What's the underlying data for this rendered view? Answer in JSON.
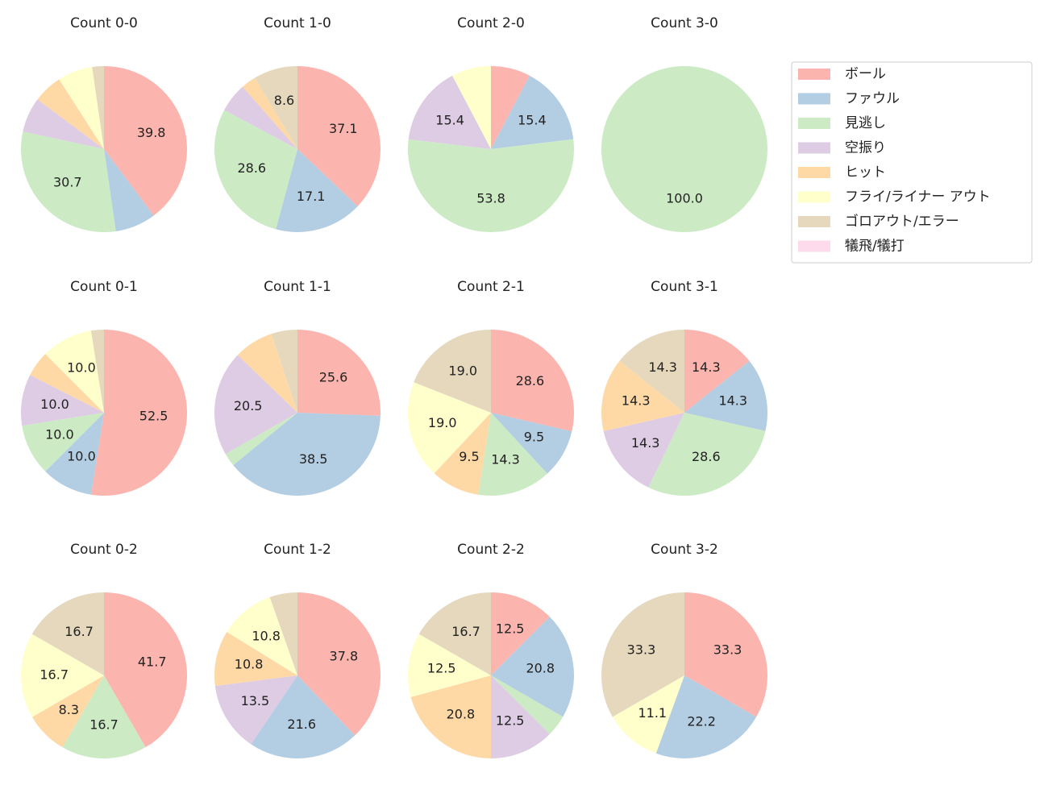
{
  "chart_data": [
    {
      "type": "pie",
      "title": "Count 0-0",
      "categories": [
        "ボール",
        "ファウル",
        "見逃し",
        "空振り",
        "ヒット",
        "フライ/ライナー アウト",
        "ゴロアウト/エラー",
        "犠飛/犠打"
      ],
      "colors": [
        "#fbb4ae",
        "#b3cde3",
        "#ccebc5",
        "#decbe4",
        "#fed9a6",
        "#ffffcc",
        "#e5d8bd",
        "#fddaec"
      ],
      "values": [
        39.8,
        7.95,
        30.7,
        6.8,
        5.7,
        6.8,
        2.3,
        0
      ],
      "value_labels": [
        "39.8",
        null,
        "30.7",
        null,
        null,
        null,
        null,
        null
      ],
      "legend": "upper right"
    },
    {
      "type": "pie",
      "title": "Count 1-0",
      "categories": [
        "ボール",
        "ファウル",
        "見逃し",
        "空振り",
        "ヒット",
        "フライ/ライナー アウト",
        "ゴロアウト/エラー",
        "犠飛/犠打"
      ],
      "colors": [
        "#fbb4ae",
        "#b3cde3",
        "#ccebc5",
        "#decbe4",
        "#fed9a6",
        "#ffffcc",
        "#e5d8bd",
        "#fddaec"
      ],
      "values": [
        37.1,
        17.1,
        28.6,
        5.7,
        2.9,
        0,
        8.6,
        0
      ],
      "value_labels": [
        "37.1",
        "17.1",
        "28.6",
        null,
        null,
        null,
        "8.6",
        null
      ]
    },
    {
      "type": "pie",
      "title": "Count 2-0",
      "categories": [
        "ボール",
        "ファウル",
        "見逃し",
        "空振り",
        "ヒット",
        "フライ/ライナー アウト",
        "ゴロアウト/エラー",
        "犠飛/犠打"
      ],
      "colors": [
        "#fbb4ae",
        "#b3cde3",
        "#ccebc5",
        "#decbe4",
        "#fed9a6",
        "#ffffcc",
        "#e5d8bd",
        "#fddaec"
      ],
      "values": [
        7.7,
        15.4,
        53.8,
        15.4,
        0,
        7.7,
        0,
        0
      ],
      "value_labels": [
        null,
        "15.4",
        "53.8",
        "15.4",
        null,
        null,
        null,
        null
      ]
    },
    {
      "type": "pie",
      "title": "Count 3-0",
      "categories": [
        "ボール",
        "ファウル",
        "見逃し",
        "空振り",
        "ヒット",
        "フライ/ライナー アウト",
        "ゴロアウト/エラー",
        "犠飛/犠打"
      ],
      "colors": [
        "#fbb4ae",
        "#b3cde3",
        "#ccebc5",
        "#decbe4",
        "#fed9a6",
        "#ffffcc",
        "#e5d8bd",
        "#fddaec"
      ],
      "values": [
        0,
        0,
        100,
        0,
        0,
        0,
        0,
        0
      ],
      "value_labels": [
        null,
        null,
        "100.0",
        null,
        null,
        null,
        null,
        null
      ]
    },
    {
      "type": "pie",
      "title": "Count 0-1",
      "categories": [
        "ボール",
        "ファウル",
        "見逃し",
        "空振り",
        "ヒット",
        "フライ/ライナー アウト",
        "ゴロアウト/エラー",
        "犠飛/犠打"
      ],
      "colors": [
        "#fbb4ae",
        "#b3cde3",
        "#ccebc5",
        "#decbe4",
        "#fed9a6",
        "#ffffcc",
        "#e5d8bd",
        "#fddaec"
      ],
      "values": [
        52.5,
        10,
        10,
        10,
        5,
        10,
        2.5,
        0
      ],
      "value_labels": [
        "52.5",
        "10.0",
        "10.0",
        "10.0",
        null,
        "10.0",
        null,
        null
      ]
    },
    {
      "type": "pie",
      "title": "Count 1-1",
      "categories": [
        "ボール",
        "ファウル",
        "見逃し",
        "空振り",
        "ヒット",
        "フライ/ライナー アウト",
        "ゴロアウト/エラー",
        "犠飛/犠打"
      ],
      "colors": [
        "#fbb4ae",
        "#b3cde3",
        "#ccebc5",
        "#decbe4",
        "#fed9a6",
        "#ffffcc",
        "#e5d8bd",
        "#fddaec"
      ],
      "values": [
        25.6,
        38.5,
        2.6,
        20.5,
        7.7,
        0,
        5.1,
        0
      ],
      "value_labels": [
        "25.6",
        "38.5",
        null,
        "20.5",
        null,
        null,
        null,
        null
      ]
    },
    {
      "type": "pie",
      "title": "Count 2-1",
      "categories": [
        "ボール",
        "ファウル",
        "見逃し",
        "空振り",
        "ヒット",
        "フライ/ライナー アウト",
        "ゴロアウト/エラー",
        "犠飛/犠打"
      ],
      "colors": [
        "#fbb4ae",
        "#b3cde3",
        "#ccebc5",
        "#decbe4",
        "#fed9a6",
        "#ffffcc",
        "#e5d8bd",
        "#fddaec"
      ],
      "values": [
        28.6,
        9.5,
        14.3,
        0,
        9.5,
        19,
        19,
        0
      ],
      "value_labels": [
        "28.6",
        "9.5",
        "14.3",
        null,
        "9.5",
        "19.0",
        "19.0",
        null
      ]
    },
    {
      "type": "pie",
      "title": "Count 3-1",
      "categories": [
        "ボール",
        "ファウル",
        "見逃し",
        "空振り",
        "ヒット",
        "フライ/ライナー アウト",
        "ゴロアウト/エラー",
        "犠飛/犠打"
      ],
      "colors": [
        "#fbb4ae",
        "#b3cde3",
        "#ccebc5",
        "#decbe4",
        "#fed9a6",
        "#ffffcc",
        "#e5d8bd",
        "#fddaec"
      ],
      "values": [
        14.3,
        14.3,
        28.6,
        14.3,
        14.3,
        0,
        14.3,
        0
      ],
      "value_labels": [
        "14.3",
        "14.3",
        "28.6",
        "14.3",
        "14.3",
        null,
        "14.3",
        null
      ]
    },
    {
      "type": "pie",
      "title": "Count 0-2",
      "categories": [
        "ボール",
        "ファウル",
        "見逃し",
        "空振り",
        "ヒット",
        "フライ/ライナー アウト",
        "ゴロアウト/エラー",
        "犠飛/犠打"
      ],
      "colors": [
        "#fbb4ae",
        "#b3cde3",
        "#ccebc5",
        "#decbe4",
        "#fed9a6",
        "#ffffcc",
        "#e5d8bd",
        "#fddaec"
      ],
      "values": [
        41.7,
        0,
        16.7,
        0,
        8.3,
        16.7,
        16.7,
        0
      ],
      "value_labels": [
        "41.7",
        null,
        "16.7",
        null,
        "8.3",
        "16.7",
        "16.7",
        null
      ]
    },
    {
      "type": "pie",
      "title": "Count 1-2",
      "categories": [
        "ボール",
        "ファウル",
        "見逃し",
        "空振り",
        "ヒット",
        "フライ/ライナー アウト",
        "ゴロアウト/エラー",
        "犠飛/犠打"
      ],
      "colors": [
        "#fbb4ae",
        "#b3cde3",
        "#ccebc5",
        "#decbe4",
        "#fed9a6",
        "#ffffcc",
        "#e5d8bd",
        "#fddaec"
      ],
      "values": [
        37.8,
        21.6,
        0,
        13.5,
        10.8,
        10.8,
        5.4,
        0
      ],
      "value_labels": [
        "37.8",
        "21.6",
        null,
        "13.5",
        "10.8",
        "10.8",
        null,
        null
      ]
    },
    {
      "type": "pie",
      "title": "Count 2-2",
      "categories": [
        "ボール",
        "ファウル",
        "見逃し",
        "空振り",
        "ヒット",
        "フライ/ライナー アウト",
        "ゴロアウト/エラー",
        "犠飛/犠打"
      ],
      "colors": [
        "#fbb4ae",
        "#b3cde3",
        "#ccebc5",
        "#decbe4",
        "#fed9a6",
        "#ffffcc",
        "#e5d8bd",
        "#fddaec"
      ],
      "values": [
        12.5,
        20.8,
        4.2,
        12.5,
        20.8,
        12.5,
        16.7,
        0
      ],
      "value_labels": [
        "12.5",
        "20.8",
        null,
        "12.5",
        "20.8",
        "12.5",
        "16.7",
        null
      ]
    },
    {
      "type": "pie",
      "title": "Count 3-2",
      "categories": [
        "ボール",
        "ファウル",
        "見逃し",
        "空振り",
        "ヒット",
        "フライ/ライナー アウト",
        "ゴロアウト/エラー",
        "犠飛/犠打"
      ],
      "colors": [
        "#fbb4ae",
        "#b3cde3",
        "#ccebc5",
        "#decbe4",
        "#fed9a6",
        "#ffffcc",
        "#e5d8bd",
        "#fddaec"
      ],
      "values": [
        33.3,
        22.2,
        0,
        0,
        0,
        11.1,
        33.3,
        0
      ],
      "value_labels": [
        "33.3",
        "22.2",
        null,
        null,
        null,
        "11.1",
        "33.3",
        null
      ]
    }
  ]
}
